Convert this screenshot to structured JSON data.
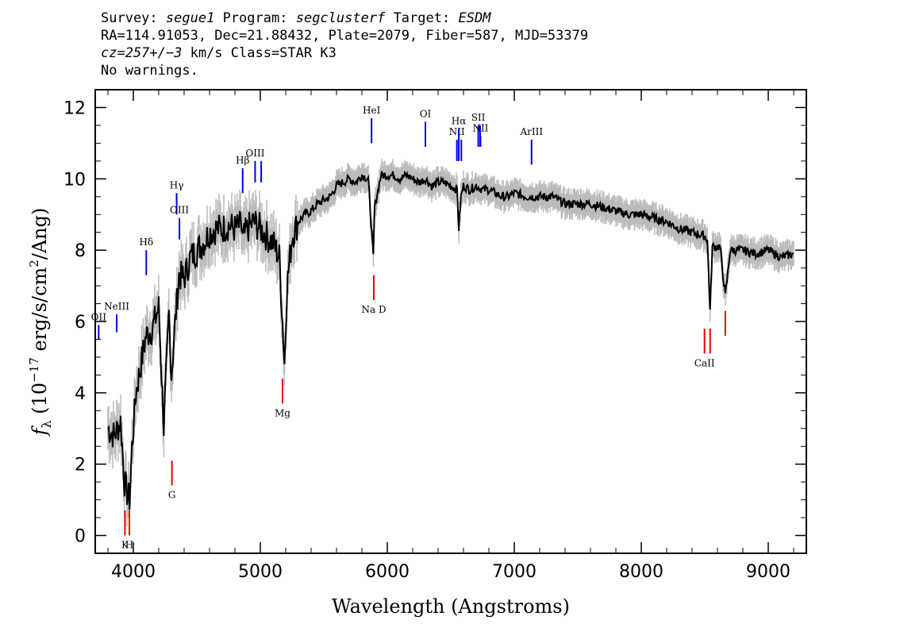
{
  "header": {
    "survey_label": "Survey:",
    "survey": "segue1",
    "program_label": "Program:",
    "program": "segclusterf",
    "target_label": "Target:",
    "target": "ESDM",
    "line2": "RA=114.91053, Dec=21.88432, Plate=2079, Fiber=587, MJD=53379",
    "cz": "cz=257+/−3",
    "cz_rest": " km/s Class=STAR K3",
    "warnings": "No warnings."
  },
  "chart_data": {
    "type": "line",
    "xlabel": "Wavelength (Angstroms)",
    "ylabel_prefix": "f",
    "ylabel_sub": "λ",
    "ylabel_mid": " (10",
    "ylabel_exp": "−17",
    "ylabel_units": " erg/s/cm",
    "ylabel_sq": "2",
    "ylabel_end": "/Ang)",
    "xlim": [
      3700,
      9300
    ],
    "ylim": [
      -0.5,
      12.5
    ],
    "xticks": [
      4000,
      5000,
      6000,
      7000,
      8000,
      9000
    ],
    "yticks": [
      0,
      2,
      4,
      6,
      8,
      10,
      12
    ],
    "series": [
      {
        "role": "spectrum",
        "color": "#000000",
        "noise_color": "#bbbbbb",
        "x": [
          3800,
          3850,
          3900,
          3930,
          3950,
          3970,
          3990,
          4020,
          4060,
          4100,
          4150,
          4200,
          4240,
          4280,
          4300,
          4330,
          4360,
          4400,
          4450,
          4500,
          4550,
          4600,
          4650,
          4700,
          4750,
          4800,
          4850,
          4861,
          4900,
          4950,
          5000,
          5050,
          5100,
          5150,
          5175,
          5190,
          5210,
          5250,
          5300,
          5350,
          5400,
          5450,
          5500,
          5550,
          5600,
          5650,
          5700,
          5750,
          5800,
          5850,
          5890,
          5900,
          5950,
          6000,
          6050,
          6100,
          6150,
          6200,
          6250,
          6300,
          6350,
          6400,
          6450,
          6500,
          6550,
          6563,
          6580,
          6600,
          6650,
          6700,
          6750,
          6800,
          6850,
          6900,
          6950,
          7000,
          7100,
          7200,
          7300,
          7400,
          7500,
          7600,
          7700,
          7800,
          7900,
          8000,
          8100,
          8200,
          8300,
          8400,
          8498,
          8520,
          8542,
          8560,
          8580,
          8620,
          8662,
          8700,
          8800,
          8900,
          9000,
          9100,
          9200
        ],
        "y": [
          3.0,
          2.8,
          3.2,
          1.5,
          1.2,
          1.0,
          2.5,
          4.0,
          4.8,
          5.6,
          5.8,
          6.4,
          3.0,
          6.2,
          4.5,
          6.0,
          7.3,
          7.2,
          7.8,
          8.0,
          8.2,
          8.5,
          8.6,
          8.6,
          8.7,
          8.6,
          8.7,
          8.3,
          8.6,
          8.8,
          8.6,
          8.4,
          8.2,
          7.8,
          6.0,
          4.8,
          7.0,
          8.4,
          8.8,
          9.0,
          9.1,
          9.3,
          9.4,
          9.5,
          9.8,
          9.9,
          10.0,
          9.9,
          10.1,
          10.0,
          7.8,
          9.2,
          10.1,
          10.1,
          10.1,
          10.0,
          10.1,
          10.0,
          9.9,
          10.0,
          9.8,
          9.9,
          9.9,
          9.8,
          9.7,
          8.6,
          9.5,
          9.8,
          9.7,
          9.8,
          9.7,
          9.7,
          9.6,
          9.5,
          9.5,
          9.6,
          9.5,
          9.5,
          9.5,
          9.3,
          9.3,
          9.3,
          9.2,
          9.1,
          9.0,
          9.0,
          8.9,
          8.8,
          8.6,
          8.5,
          8.4,
          8.3,
          6.3,
          8.1,
          8.1,
          8.1,
          6.7,
          8.0,
          8.0,
          7.9,
          8.0,
          7.8,
          7.9
        ]
      }
    ],
    "emission_lines": [
      {
        "label": "OII",
        "x": 3727,
        "y_bottom": 5.5,
        "y_top": 5.9
      },
      {
        "label": "NeIII",
        "x": 3869,
        "y_bottom": 5.7,
        "y_top": 6.2
      },
      {
        "label": "Hδ",
        "x": 4102,
        "y_bottom": 7.3,
        "y_top": 8.0
      },
      {
        "label": "Hγ",
        "x": 4341,
        "y_bottom": 9.0,
        "y_top": 9.6
      },
      {
        "label": "OIII",
        "x": 4363,
        "y_bottom": 8.3,
        "y_top": 8.9
      },
      {
        "label": "Hβ",
        "x": 4861,
        "y_bottom": 9.6,
        "y_top": 10.3
      },
      {
        "label": "OIII",
        "x": 4959,
        "y_bottom": 9.9,
        "y_top": 10.5
      },
      {
        "label": "",
        "x": 5007,
        "y_bottom": 9.9,
        "y_top": 10.5
      },
      {
        "label": "HeI",
        "x": 5876,
        "y_bottom": 11.0,
        "y_top": 11.7
      },
      {
        "label": "OI",
        "x": 6300,
        "y_bottom": 10.9,
        "y_top": 11.6
      },
      {
        "label": "NII",
        "x": 6548,
        "y_bottom": 10.5,
        "y_top": 11.1
      },
      {
        "label": "Hα",
        "x": 6563,
        "y_bottom": 10.5,
        "y_top": 11.4
      },
      {
        "label": "",
        "x": 6583,
        "y_bottom": 10.5,
        "y_top": 11.1
      },
      {
        "label": "SII",
        "x": 6716,
        "y_bottom": 10.9,
        "y_top": 11.5
      },
      {
        "label": "",
        "x": 6731,
        "y_bottom": 10.9,
        "y_top": 11.5
      },
      {
        "label": "NII",
        "x": 6734,
        "y_bottom": 10.9,
        "y_top": 11.2
      },
      {
        "label": "ArIII",
        "x": 7136,
        "y_bottom": 10.4,
        "y_top": 11.1
      }
    ],
    "absorption_lines": [
      {
        "label": "K",
        "x": 3934,
        "y_bottom": 0.0,
        "y_top": 0.7
      },
      {
        "label": "H",
        "x": 3969,
        "y_bottom": 0.0,
        "y_top": 0.7
      },
      {
        "label": "G",
        "x": 4304,
        "y_bottom": 1.4,
        "y_top": 2.1
      },
      {
        "label": "Mg",
        "x": 5175,
        "y_bottom": 3.7,
        "y_top": 4.4
      },
      {
        "label": "Na D",
        "x": 5894,
        "y_bottom": 6.6,
        "y_top": 7.3
      },
      {
        "label": "CaII",
        "x": 8498,
        "y_bottom": 5.1,
        "y_top": 5.8
      },
      {
        "label": "",
        "x": 8542,
        "y_bottom": 5.1,
        "y_top": 5.8
      },
      {
        "label": "",
        "x": 8662,
        "y_bottom": 5.6,
        "y_top": 6.3
      }
    ],
    "emission_color": "#0000ee",
    "absorption_color": "#ee0000",
    "grid": false
  }
}
